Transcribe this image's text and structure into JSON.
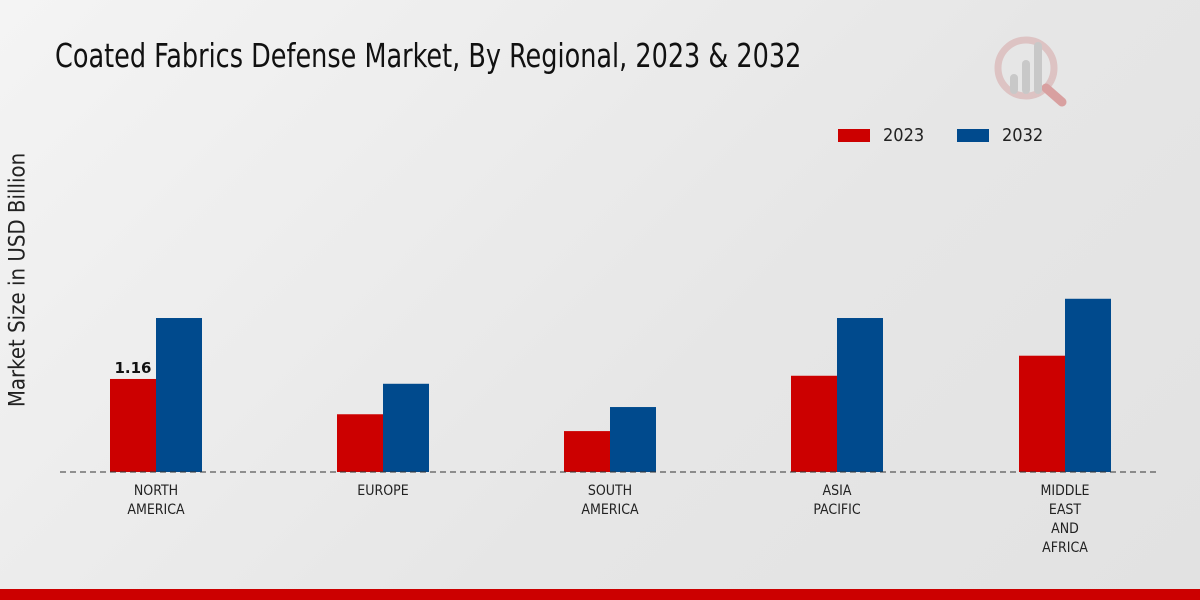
{
  "chart_data": {
    "type": "bar",
    "title": "Coated Fabrics Defense Market, By Regional, 2023 & 2032",
    "xlabel": "",
    "ylabel": "Market Size in USD Billion",
    "categories": [
      "NORTH\nAMERICA",
      "EUROPE",
      "SOUTH\nAMERICA",
      "ASIA\nPACIFIC",
      "MIDDLE\nEAST\nAND\nAFRICA"
    ],
    "series": [
      {
        "name": "2023",
        "color": "#cc0000",
        "values": [
          1.16,
          0.72,
          0.51,
          1.2,
          1.45
        ]
      },
      {
        "name": "2032",
        "color": "#004a8d",
        "values": [
          1.92,
          1.1,
          0.81,
          1.92,
          2.16
        ]
      }
    ],
    "data_labels": [
      {
        "series": "2023",
        "category_index": 0,
        "text": "1.16"
      }
    ],
    "ylim": [
      0,
      4.3
    ],
    "grid": false,
    "legend_position": "top-right"
  }
}
